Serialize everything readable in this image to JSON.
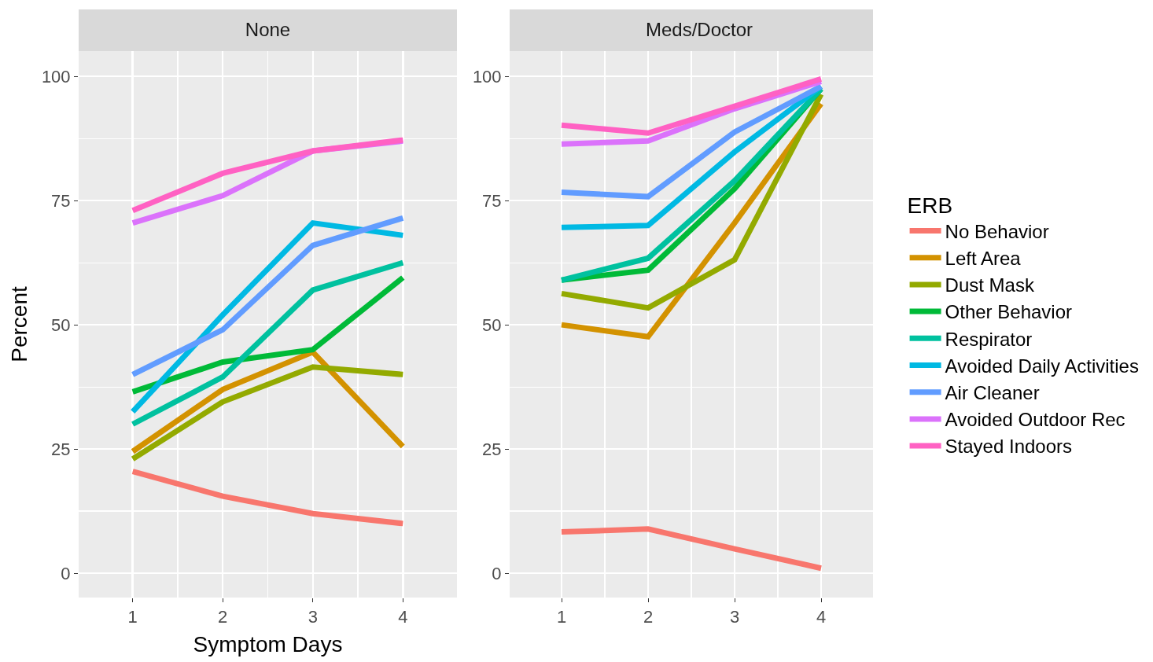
{
  "chart_data": [
    {
      "type": "line",
      "title": "None",
      "xlabel": "Symptom Days",
      "ylabel": "Percent",
      "x": [
        1,
        2,
        3,
        4
      ],
      "xlim": [
        0.4,
        4.6
      ],
      "xticks": [
        1,
        2,
        3,
        4
      ],
      "ylim": [
        -4.9,
        105.1
      ],
      "yticks": [
        0,
        25,
        50,
        75,
        100
      ],
      "grid": true,
      "legend": false,
      "marker": "none",
      "line_style": "solid",
      "series": [
        {
          "color": "#f8766d",
          "values": [
            20.5,
            15.5,
            12,
            10
          ]
        },
        {
          "color": "#d39200",
          "values": [
            24.5,
            37,
            44.5,
            25.5
          ]
        },
        {
          "color": "#93aa00",
          "values": [
            23,
            34.5,
            41.5,
            40
          ]
        },
        {
          "color": "#00ba38",
          "values": [
            36.5,
            42.5,
            45,
            59.5
          ]
        },
        {
          "color": "#00c19f",
          "values": [
            30,
            39.5,
            57,
            62.5
          ]
        },
        {
          "color": "#00b9e3",
          "values": [
            32.5,
            52,
            70.5,
            68
          ]
        },
        {
          "color": "#619cff",
          "values": [
            40,
            49,
            66,
            71.5
          ]
        },
        {
          "color": "#db72fb",
          "values": [
            70.5,
            76,
            85,
            87
          ]
        },
        {
          "color": "#ff61c3",
          "values": [
            73,
            80.5,
            85,
            87.2
          ]
        }
      ]
    },
    {
      "type": "line",
      "title": "Meds/Doctor",
      "legend_title": "ERB",
      "x": [
        1,
        2,
        3,
        4
      ],
      "xlim": [
        0.4,
        4.6
      ],
      "xticks": [
        1,
        2,
        3,
        4
      ],
      "ylim": [
        -4.9,
        105.1
      ],
      "yticks": [
        0,
        25,
        50,
        75,
        100
      ],
      "grid": true,
      "legend": "right",
      "marker": "none",
      "line_style": "solid",
      "series": [
        {
          "name": "No Behavior",
          "color": "#f8766d",
          "values": [
            8.3,
            8.9,
            4.9,
            1
          ]
        },
        {
          "name": "Left Area",
          "color": "#d39200",
          "values": [
            50,
            47.6,
            70.5,
            94.5
          ]
        },
        {
          "name": "Dust Mask",
          "color": "#93aa00",
          "values": [
            56.3,
            53.4,
            63.1,
            96.4
          ]
        },
        {
          "name": "Other Behavior",
          "color": "#00ba38",
          "values": [
            59,
            61,
            77.4,
            97.5
          ]
        },
        {
          "name": "Respirator",
          "color": "#00c19f",
          "values": [
            59,
            63.4,
            79,
            97.5
          ]
        },
        {
          "name": "Avoided Daily Activities",
          "color": "#00b9e3",
          "values": [
            69.6,
            70,
            84.8,
            98
          ]
        },
        {
          "name": "Air Cleaner",
          "color": "#619cff",
          "values": [
            76.7,
            75.8,
            88.8,
            98
          ]
        },
        {
          "name": "Avoided Outdoor Rec",
          "color": "#db72fb",
          "values": [
            86.4,
            87,
            93.5,
            99
          ]
        },
        {
          "name": "Stayed Indoors",
          "color": "#ff61c3",
          "values": [
            90.2,
            88.6,
            94,
            99.5
          ]
        }
      ]
    }
  ]
}
